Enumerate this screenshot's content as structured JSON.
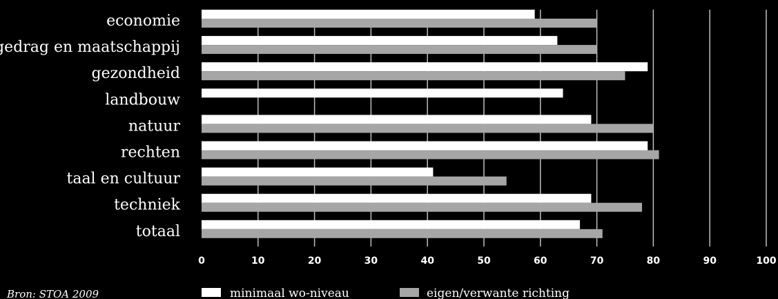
{
  "chart_data": {
    "type": "bar",
    "orientation": "horizontal",
    "categories": [
      "economie",
      "gedrag en maatschappij",
      "gezondheid",
      "landbouw",
      "natuur",
      "rechten",
      "taal en cultuur",
      "techniek",
      "totaal"
    ],
    "series": [
      {
        "name": "minimaal wo-niveau",
        "color": "#ffffff",
        "values": [
          59,
          63,
          79,
          64,
          69,
          79,
          41,
          69,
          67
        ]
      },
      {
        "name": "eigen/verwante richting",
        "color": "#a6a6a6",
        "values": [
          70,
          70,
          75,
          0,
          80,
          81,
          54,
          78,
          71
        ]
      }
    ],
    "xlim": [
      0,
      100
    ],
    "xticks": [
      0,
      10,
      20,
      30,
      40,
      50,
      60,
      70,
      80,
      90,
      100
    ],
    "grid": true,
    "legend_position": "bottom",
    "source": "Bron: STOA 2009"
  }
}
